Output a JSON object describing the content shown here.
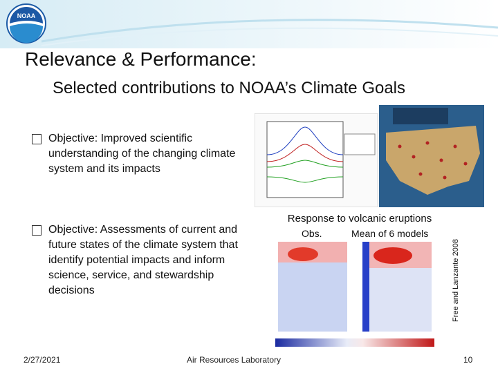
{
  "header": {
    "logo": "NOAA",
    "title": "Relevance & Performance:",
    "subtitle": "Selected contributions to NOAA’s Climate Goals"
  },
  "bullets": [
    "Objective: Improved scientific understanding of the changing climate system and its impacts",
    "Objective: Assessments of current and future states of the climate system that identify potential impacts and inform science, service, and stewardship decisions"
  ],
  "figure": {
    "title": "Response to volcanic eruptions",
    "left_label": "Obs.",
    "right_label": "Mean of 6 models",
    "credit": "Free and Lanzante 2008"
  },
  "footer": {
    "date": "2/27/2021",
    "organization": "Air Resources Laboratory",
    "page": "10"
  }
}
